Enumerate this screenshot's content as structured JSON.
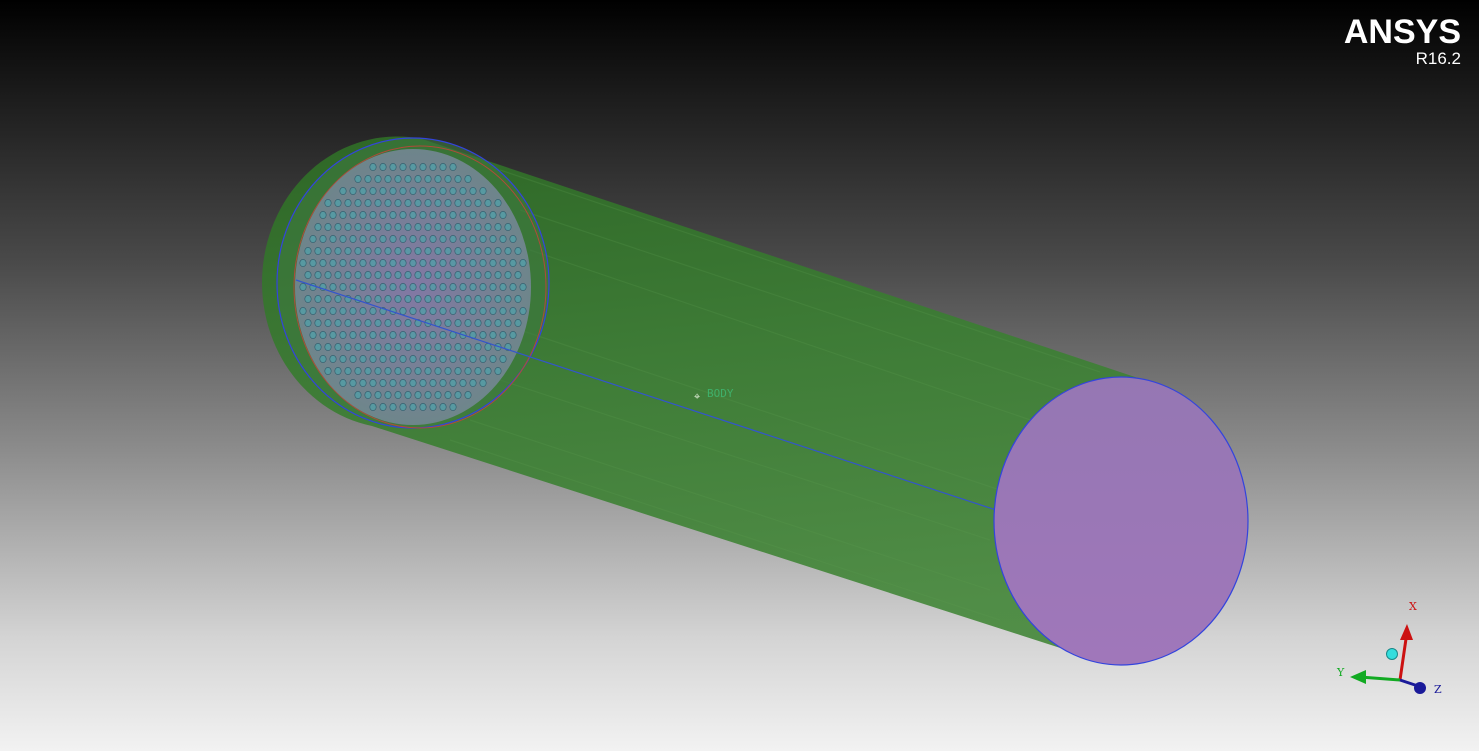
{
  "app": {
    "brand": "ANSYS",
    "version": "R16.2"
  },
  "model": {
    "body_label": "BODY",
    "colors": {
      "cylinder": "#3a7a32",
      "outlet_face": "#9a78b8",
      "inlet_face": "#7a6fa8",
      "edge": "#3344dd",
      "holes": "#4fa0a8"
    }
  },
  "triad": {
    "x_label": "X",
    "y_label": "Y",
    "z_label": "Z",
    "x_color": "#cc1111",
    "y_color": "#11aa22",
    "z_color": "#1a1a99",
    "iso_color": "#33dddd"
  }
}
